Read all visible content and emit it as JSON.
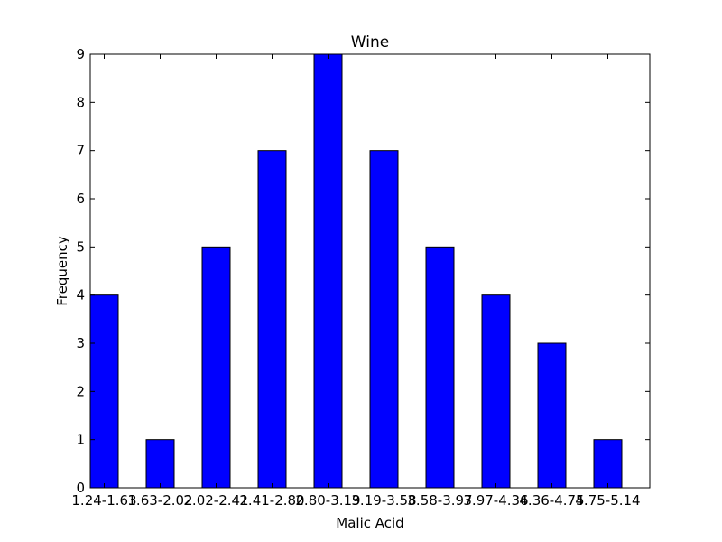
{
  "chart_data": {
    "type": "bar",
    "title": "Wine",
    "xlabel": "Malic Acid",
    "ylabel": "Frequency",
    "categories": [
      "1.24-1.63",
      "1.63-2.02",
      "2.02-2.41",
      "2.41-2.80",
      "2.80-3.19",
      "3.19-3.58",
      "3.58-3.97",
      "3.97-4.36",
      "4.36-4.75",
      "4.75-5.14"
    ],
    "category_labels_as_drawn": [
      "1.24-1.63",
      "1.63-2.02",
      "2.02-2.41",
      "2.41-2.80",
      "2.80-3.19",
      "3.19-3.58",
      "3.58-3.97",
      "3.97-4.36",
      "4.36-4.75",
      "4.75-5.14"
    ],
    "values": [
      4,
      1,
      5,
      7,
      9,
      7,
      5,
      4,
      3,
      1
    ],
    "ylim": [
      0,
      9
    ],
    "yticks": [
      "0",
      "1",
      "2",
      "3",
      "4",
      "5",
      "6",
      "7",
      "8",
      "9"
    ],
    "bar_color": "#0000ff",
    "grid": false,
    "legend": "none"
  }
}
